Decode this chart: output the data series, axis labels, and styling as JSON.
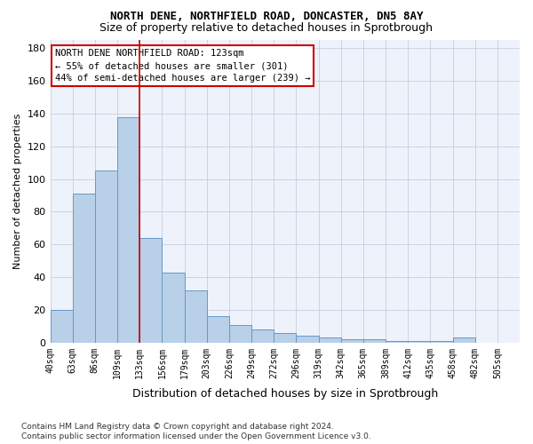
{
  "title1": "NORTH DENE, NORTHFIELD ROAD, DONCASTER, DN5 8AY",
  "title2": "Size of property relative to detached houses in Sprotbrough",
  "xlabel": "Distribution of detached houses by size in Sprotbrough",
  "ylabel": "Number of detached properties",
  "bar_values": [
    20,
    91,
    105,
    138,
    64,
    43,
    32,
    16,
    11,
    8,
    6,
    4,
    3,
    2,
    2,
    1,
    1,
    1,
    3,
    0,
    0
  ],
  "categories": [
    "40sqm",
    "63sqm",
    "86sqm",
    "109sqm",
    "133sqm",
    "156sqm",
    "179sqm",
    "203sqm",
    "226sqm",
    "249sqm",
    "272sqm",
    "296sqm",
    "319sqm",
    "342sqm",
    "365sqm",
    "389sqm",
    "412sqm",
    "435sqm",
    "458sqm",
    "482sqm",
    "505sqm"
  ],
  "bar_color": "#b8d0e8",
  "bar_edge_color": "#6699cc",
  "vline_color": "#cc0000",
  "vline_x": 3,
  "ylim": [
    0,
    185
  ],
  "yticks": [
    0,
    20,
    40,
    60,
    80,
    100,
    120,
    140,
    160,
    180
  ],
  "legend_text_line1": "NORTH DENE NORTHFIELD ROAD: 123sqm",
  "legend_text_line2": "← 55% of detached houses are smaller (301)",
  "legend_text_line3": "44% of semi-detached houses are larger (239) →",
  "legend_box_color": "white",
  "legend_box_edge": "#cc0000",
  "footer_line1": "Contains HM Land Registry data © Crown copyright and database right 2024.",
  "footer_line2": "Contains public sector information licensed under the Open Government Licence v3.0.",
  "bg_color": "#eef2fa",
  "grid_color": "#c8cede"
}
